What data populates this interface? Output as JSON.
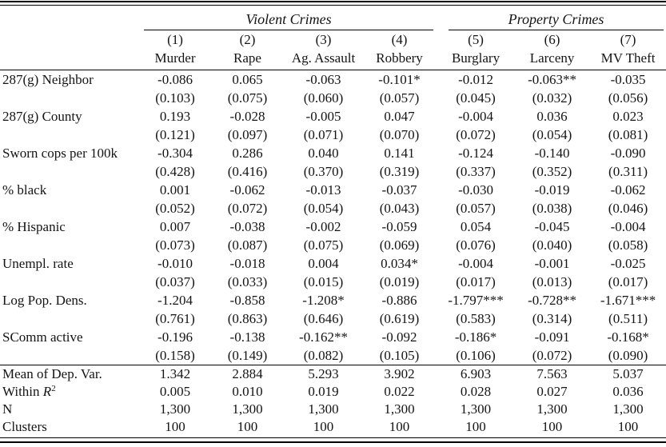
{
  "colors": {
    "background": "#ffffff",
    "text": "#141414",
    "rule": "#000000"
  },
  "table": {
    "groups": [
      {
        "label": "Violent Crimes",
        "span": 4
      },
      {
        "label": "Property Crimes",
        "span": 3
      }
    ],
    "columns": [
      {
        "number": "(1)",
        "name": "Murder"
      },
      {
        "number": "(2)",
        "name": "Rape"
      },
      {
        "number": "(3)",
        "name": "Ag. Assault"
      },
      {
        "number": "(4)",
        "name": "Robbery"
      },
      {
        "number": "(5)",
        "name": "Burglary"
      },
      {
        "number": "(6)",
        "name": "Larceny"
      },
      {
        "number": "(7)",
        "name": "MV Theft"
      }
    ],
    "rows": [
      {
        "label": "287(g) Neighbor",
        "coefficients": [
          "-0.086",
          "0.065",
          "-0.063",
          "-0.101*",
          "-0.012",
          "-0.063**",
          "-0.035"
        ],
        "std_errors": [
          "(0.103)",
          "(0.075)",
          "(0.060)",
          "(0.057)",
          "(0.045)",
          "(0.032)",
          "(0.056)"
        ]
      },
      {
        "label": "287(g) County",
        "coefficients": [
          "0.193",
          "-0.028",
          "-0.005",
          "0.047",
          "-0.004",
          "0.036",
          "0.023"
        ],
        "std_errors": [
          "(0.121)",
          "(0.097)",
          "(0.071)",
          "(0.070)",
          "(0.072)",
          "(0.054)",
          "(0.081)"
        ]
      },
      {
        "label": "Sworn cops per 100k",
        "coefficients": [
          "-0.304",
          "0.286",
          "0.040",
          "0.141",
          "-0.124",
          "-0.140",
          "-0.090"
        ],
        "std_errors": [
          "(0.428)",
          "(0.416)",
          "(0.370)",
          "(0.319)",
          "(0.337)",
          "(0.352)",
          "(0.311)"
        ]
      },
      {
        "label": "% black",
        "coefficients": [
          "0.001",
          "-0.062",
          "-0.013",
          "-0.037",
          "-0.030",
          "-0.019",
          "-0.062"
        ],
        "std_errors": [
          "(0.052)",
          "(0.072)",
          "(0.054)",
          "(0.043)",
          "(0.057)",
          "(0.038)",
          "(0.046)"
        ]
      },
      {
        "label": "% Hispanic",
        "coefficients": [
          "0.007",
          "-0.038",
          "-0.002",
          "-0.059",
          "0.054",
          "-0.045",
          "-0.004"
        ],
        "std_errors": [
          "(0.073)",
          "(0.087)",
          "(0.075)",
          "(0.069)",
          "(0.076)",
          "(0.040)",
          "(0.058)"
        ]
      },
      {
        "label": "Unempl. rate",
        "coefficients": [
          "-0.010",
          "-0.018",
          "0.004",
          "0.034*",
          "-0.004",
          "-0.001",
          "-0.025"
        ],
        "std_errors": [
          "(0.037)",
          "(0.033)",
          "(0.015)",
          "(0.019)",
          "(0.017)",
          "(0.013)",
          "(0.017)"
        ]
      },
      {
        "label": "Log Pop. Dens.",
        "coefficients": [
          "-1.204",
          "-0.858",
          "-1.208*",
          "-0.886",
          "-1.797***",
          "-0.728**",
          "-1.671***"
        ],
        "std_errors": [
          "(0.761)",
          "(0.863)",
          "(0.646)",
          "(0.619)",
          "(0.583)",
          "(0.314)",
          "(0.511)"
        ]
      },
      {
        "label": "SComm active",
        "coefficients": [
          "-0.196",
          "-0.138",
          "-0.162**",
          "-0.092",
          "-0.186*",
          "-0.091",
          "-0.168*"
        ],
        "std_errors": [
          "(0.158)",
          "(0.149)",
          "(0.082)",
          "(0.105)",
          "(0.106)",
          "(0.072)",
          "(0.090)"
        ]
      }
    ],
    "summary_rows": [
      {
        "label": "Mean of Dep. Var.",
        "values": [
          "1.342",
          "2.884",
          "5.293",
          "3.902",
          "6.903",
          "7.563",
          "5.037"
        ]
      },
      {
        "label_prefix": "Within ",
        "label_var": "R",
        "label_sup": "2",
        "label": "Within R2",
        "values": [
          "0.005",
          "0.010",
          "0.019",
          "0.022",
          "0.028",
          "0.027",
          "0.036"
        ]
      },
      {
        "label": "N",
        "values": [
          "1,300",
          "1,300",
          "1,300",
          "1,300",
          "1,300",
          "1,300",
          "1,300"
        ]
      },
      {
        "label": "Clusters",
        "values": [
          "100",
          "100",
          "100",
          "100",
          "100",
          "100",
          "100"
        ]
      }
    ]
  }
}
